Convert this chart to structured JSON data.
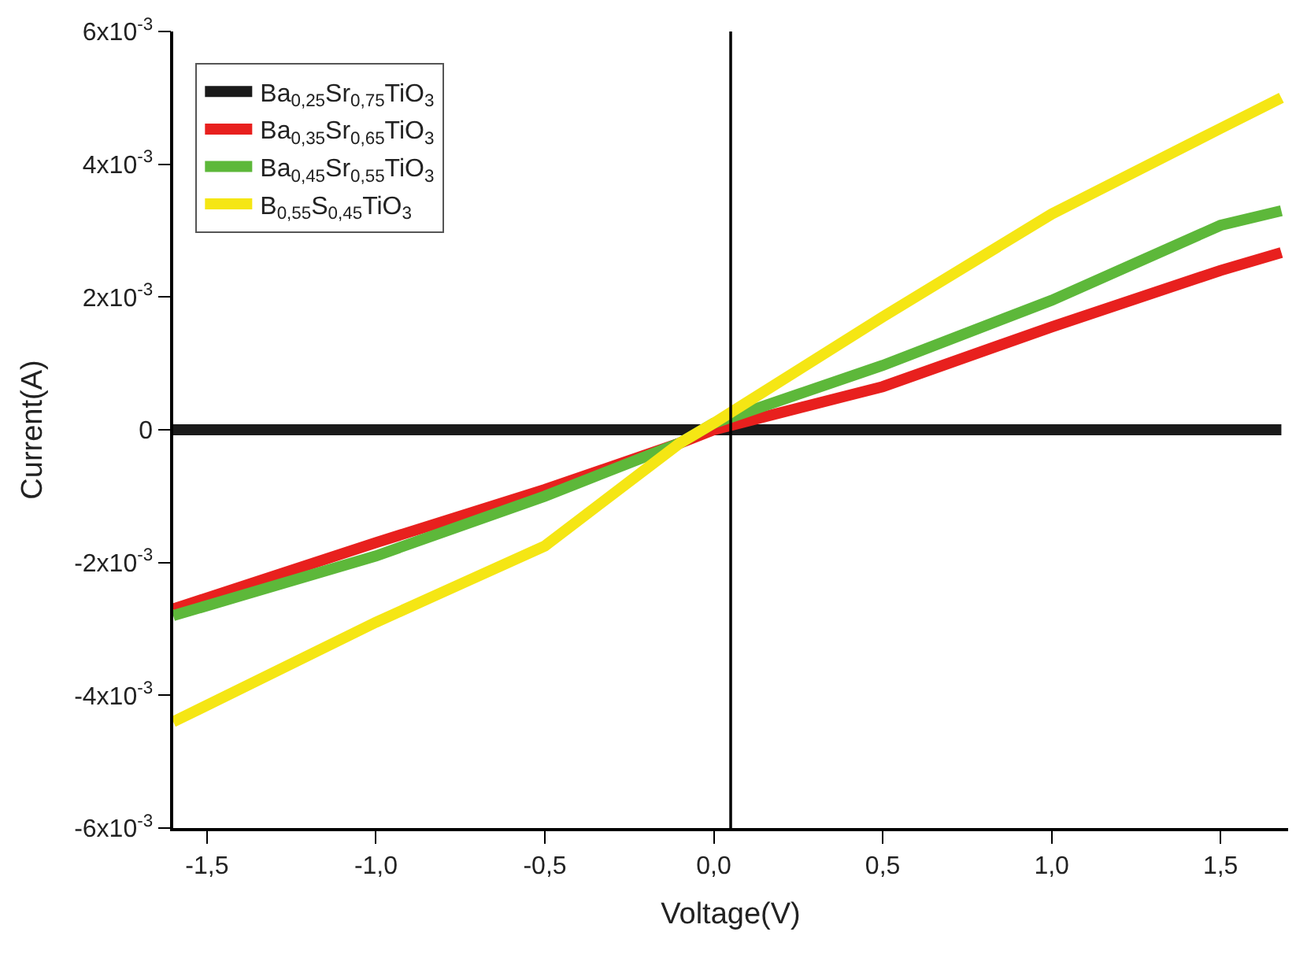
{
  "chart_data": {
    "type": "line",
    "xlabel": "Voltage(V)",
    "ylabel": "Current(A)",
    "xlim": [
      -1.6,
      1.7
    ],
    "ylim": [
      -0.006,
      0.006
    ],
    "xticks": [
      {
        "value": -1.5,
        "label": "-1,5"
      },
      {
        "value": -1.0,
        "label": "-1,0"
      },
      {
        "value": -0.5,
        "label": "-0,5"
      },
      {
        "value": 0.0,
        "label": "0,0"
      },
      {
        "value": 0.5,
        "label": "0,5"
      },
      {
        "value": 1.0,
        "label": "1,0"
      },
      {
        "value": 1.5,
        "label": "1,5"
      }
    ],
    "yticks": [
      {
        "value": -0.006,
        "label": "-6x10$^{-3}$"
      },
      {
        "value": -0.004,
        "label": "-4x10$^{-3}$"
      },
      {
        "value": -0.002,
        "label": "-2x10$^{-3}$"
      },
      0,
      {
        "value": 0.002,
        "label": "2x10$^{-3}$"
      },
      {
        "value": 0.004,
        "label": "4x10$^{-3}$"
      },
      {
        "value": 0.006,
        "label": "6x10$^{-3}$"
      }
    ],
    "x": [
      -1.6,
      -1.0,
      -0.5,
      -0.1,
      0.0,
      0.5,
      1.0,
      1.5,
      1.68
    ],
    "series": [
      {
        "name": "Ba$_{0,25}$Sr$_{0,75}$TiO$_{3}$",
        "color": "#1a1a1a",
        "values": [
          0,
          0,
          0,
          0,
          0,
          0,
          0,
          0,
          0
        ]
      },
      {
        "name": "Ba$_{0,35}$Sr$_{0,65}$TiO$_{3}$",
        "color": "#e8201e",
        "values": [
          -0.0027,
          -0.0017,
          -0.0009,
          -0.0002,
          0.0,
          0.00065,
          0.00155,
          0.0024,
          0.00267
        ]
      },
      {
        "name": "Ba$_{0,45}$Sr$_{0,55}$TiO$_{3}$",
        "color": "#5db83a",
        "values": [
          -0.0028,
          -0.0019,
          -0.001,
          -0.0002,
          0.0001,
          0.00097,
          0.00195,
          0.00308,
          0.0033
        ]
      },
      {
        "name": "B$_{0,55}$S$_{0,45}$TiO$_{3}$",
        "color": "#f5e614",
        "values": [
          -0.0044,
          -0.0029,
          -0.00175,
          -0.0002,
          0.0001,
          0.0017,
          0.00325,
          0.00454,
          0.005
        ]
      }
    ],
    "ref_lines": [
      {
        "axis": "x",
        "value": 0.05,
        "color": "#000000"
      }
    ],
    "legend": "top left",
    "marker": "none",
    "line_style": "solid"
  }
}
